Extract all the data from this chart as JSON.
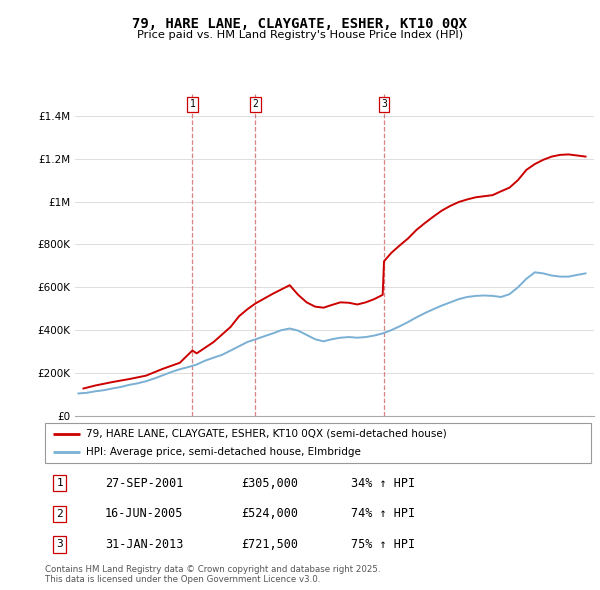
{
  "title": "79, HARE LANE, CLAYGATE, ESHER, KT10 0QX",
  "subtitle": "Price paid vs. HM Land Registry's House Price Index (HPI)",
  "legend_line1": "79, HARE LANE, CLAYGATE, ESHER, KT10 0QX (semi-detached house)",
  "legend_line2": "HPI: Average price, semi-detached house, Elmbridge",
  "footer1": "Contains HM Land Registry data © Crown copyright and database right 2025.",
  "footer2": "This data is licensed under the Open Government Licence v3.0.",
  "sale_color": "#cc0000",
  "hpi_color": "#7ab0d4",
  "ylim": [
    0,
    1500000
  ],
  "yticks": [
    0,
    200000,
    400000,
    600000,
    800000,
    1000000,
    1200000,
    1400000
  ],
  "ytick_labels": [
    "£0",
    "£200K",
    "£400K",
    "£600K",
    "£800K",
    "£1M",
    "£1.2M",
    "£1.4M"
  ],
  "transactions": [
    {
      "label": "1",
      "date": "27-SEP-2001",
      "price": 305000,
      "pct": "34%",
      "x": 2001.74
    },
    {
      "label": "2",
      "date": "16-JUN-2005",
      "price": 524000,
      "pct": "74%",
      "x": 2005.46
    },
    {
      "label": "3",
      "date": "31-JAN-2013",
      "price": 721500,
      "pct": "75%",
      "x": 2013.08
    }
  ],
  "hpi_years": [
    1995.0,
    1995.5,
    1996.0,
    1996.5,
    1997.0,
    1997.5,
    1998.0,
    1998.5,
    1999.0,
    1999.5,
    2000.0,
    2000.5,
    2001.0,
    2001.5,
    2002.0,
    2002.5,
    2003.0,
    2003.5,
    2004.0,
    2004.5,
    2005.0,
    2005.5,
    2006.0,
    2006.5,
    2007.0,
    2007.5,
    2008.0,
    2008.5,
    2009.0,
    2009.5,
    2010.0,
    2010.5,
    2011.0,
    2011.5,
    2012.0,
    2012.5,
    2013.0,
    2013.5,
    2014.0,
    2014.5,
    2015.0,
    2015.5,
    2016.0,
    2016.5,
    2017.0,
    2017.5,
    2018.0,
    2018.5,
    2019.0,
    2019.5,
    2020.0,
    2020.5,
    2021.0,
    2021.5,
    2022.0,
    2022.5,
    2023.0,
    2023.5,
    2024.0,
    2024.5,
    2025.0
  ],
  "hpi_values": [
    105000,
    108000,
    115000,
    120000,
    128000,
    135000,
    145000,
    152000,
    162000,
    175000,
    190000,
    205000,
    218000,
    228000,
    240000,
    258000,
    272000,
    285000,
    305000,
    325000,
    345000,
    358000,
    372000,
    385000,
    400000,
    408000,
    398000,
    378000,
    358000,
    348000,
    358000,
    365000,
    368000,
    365000,
    368000,
    375000,
    385000,
    400000,
    418000,
    438000,
    460000,
    480000,
    498000,
    515000,
    530000,
    545000,
    555000,
    560000,
    562000,
    560000,
    555000,
    568000,
    600000,
    640000,
    670000,
    665000,
    655000,
    650000,
    650000,
    658000,
    665000
  ],
  "price_years": [
    1995.3,
    1996.0,
    1997.0,
    1998.0,
    1999.0,
    2000.0,
    2001.0,
    2001.74,
    2002.0,
    2003.0,
    2004.0,
    2004.5,
    2005.0,
    2005.46,
    2006.0,
    2006.5,
    2007.0,
    2007.5,
    2008.0,
    2008.5,
    2009.0,
    2009.5,
    2010.0,
    2010.5,
    2011.0,
    2011.5,
    2012.0,
    2012.5,
    2013.0,
    2013.08,
    2013.5,
    2014.0,
    2014.5,
    2015.0,
    2015.5,
    2016.0,
    2016.5,
    2017.0,
    2017.5,
    2018.0,
    2018.5,
    2019.0,
    2019.5,
    2020.0,
    2020.5,
    2021.0,
    2021.5,
    2022.0,
    2022.5,
    2023.0,
    2023.5,
    2024.0,
    2024.5,
    2025.0
  ],
  "price_values": [
    128000,
    142000,
    158000,
    172000,
    188000,
    220000,
    248000,
    305000,
    292000,
    345000,
    415000,
    465000,
    498000,
    524000,
    548000,
    570000,
    590000,
    610000,
    565000,
    530000,
    510000,
    505000,
    518000,
    530000,
    528000,
    520000,
    530000,
    545000,
    565000,
    721500,
    760000,
    795000,
    828000,
    868000,
    900000,
    930000,
    958000,
    980000,
    998000,
    1010000,
    1020000,
    1025000,
    1030000,
    1048000,
    1065000,
    1100000,
    1148000,
    1175000,
    1195000,
    1210000,
    1218000,
    1220000,
    1215000,
    1210000
  ],
  "xmin": 1994.8,
  "xmax": 2025.5,
  "xticks": [
    1995,
    1996,
    1997,
    1998,
    1999,
    2000,
    2001,
    2002,
    2003,
    2004,
    2005,
    2006,
    2007,
    2008,
    2009,
    2010,
    2011,
    2012,
    2013,
    2014,
    2015,
    2016,
    2017,
    2018,
    2019,
    2020,
    2021,
    2022,
    2023,
    2024,
    2025
  ]
}
